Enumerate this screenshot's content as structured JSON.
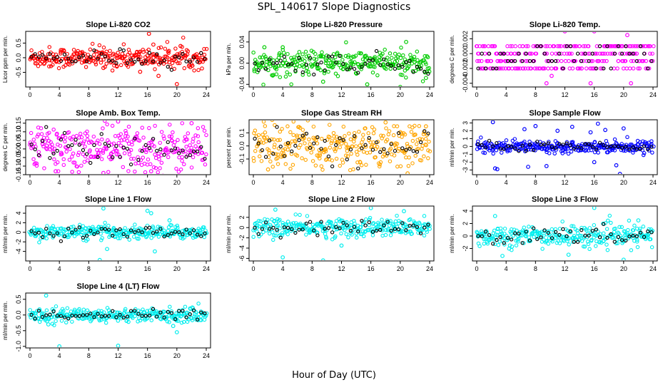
{
  "figure": {
    "title": "SPL_140617  Slope Diagnostics",
    "xlabel": "Hour of Day (UTC)"
  },
  "chart_data": [
    {
      "type": "scatter",
      "title": "Slope Li-820 CO2",
      "ylabel": "Licor ppm per min.",
      "color": "#ff0000",
      "xlim": [
        0,
        24
      ],
      "ylim": [
        -1.0,
        0.9
      ],
      "xticks": [
        0,
        4,
        8,
        12,
        16,
        20,
        24
      ],
      "yticks": [
        -0.5,
        0.0,
        0.5
      ],
      "ytick_labels": [
        "-0.5",
        "0.0",
        "0.5"
      ],
      "spread": 0.18,
      "outliers": [
        [
          16.2,
          0.82
        ],
        [
          16.8,
          0.45
        ],
        [
          17.5,
          -0.62
        ],
        [
          20.0,
          -0.9
        ],
        [
          15.0,
          -0.48
        ],
        [
          20.5,
          0.4
        ],
        [
          10.0,
          -0.35
        ]
      ]
    },
    {
      "type": "scatter",
      "title": "Slope Li-820 Pressure",
      "ylabel": "kPa per min.",
      "color": "#00cc00",
      "xlim": [
        0,
        24
      ],
      "ylim": [
        -0.045,
        0.06
      ],
      "xticks": [
        0,
        4,
        8,
        12,
        16,
        20,
        24
      ],
      "yticks": [
        -0.04,
        0.0,
        0.04
      ],
      "ytick_labels": [
        "-0.04",
        "0.00",
        "0.04"
      ],
      "spread": 0.012,
      "outliers": [
        [
          1.5,
          0.03
        ],
        [
          20.0,
          -0.045
        ],
        [
          23.5,
          -0.028
        ],
        [
          15.5,
          -0.04
        ],
        [
          20.8,
          0.04
        ],
        [
          9.5,
          -0.035
        ],
        [
          4.0,
          0.03
        ]
      ]
    },
    {
      "type": "scatter",
      "title": "Slope Li-820 Temp.",
      "ylabel": "degrees C per min.",
      "color": "#ff00ff",
      "xlim": [
        0,
        24
      ],
      "ylim": [
        -0.0045,
        0.003
      ],
      "xticks": [
        0,
        4,
        8,
        12,
        16,
        20,
        24
      ],
      "yticks": [
        -0.004,
        -0.002,
        0.0,
        0.002
      ],
      "ytick_labels": [
        "-0.004",
        "-0.002",
        "0.000",
        "0.002"
      ],
      "quantized": [
        -0.002,
        -0.001,
        0.0,
        0.001
      ],
      "spread": 0.001,
      "outliers": [
        [
          9.5,
          -0.004
        ],
        [
          15.5,
          -0.004
        ],
        [
          21.0,
          -0.004
        ],
        [
          12.0,
          0.003
        ],
        [
          16.0,
          0.003
        ],
        [
          20.5,
          0.0025
        ],
        [
          10.2,
          -0.003
        ]
      ]
    },
    {
      "type": "scatter",
      "title": "Slope Amb. Box Temp.",
      "ylabel": "degrees C per min.",
      "color": "#ff00ff",
      "xlim": [
        0,
        24
      ],
      "ylim": [
        -0.15,
        0.17
      ],
      "xticks": [
        0,
        4,
        8,
        12,
        16,
        20,
        24
      ],
      "yticks": [
        -0.15,
        -0.1,
        -0.05,
        0.0,
        0.05,
        0.1,
        0.15
      ],
      "ytick_labels": [
        "-0.15",
        "-0.10",
        "-0.05",
        "0.00",
        "0.05",
        "0.10",
        "0.15"
      ],
      "spread": 0.07,
      "outliers": [
        [
          12.0,
          0.16
        ],
        [
          10.0,
          -0.14
        ],
        [
          3.5,
          -0.13
        ],
        [
          16.5,
          -0.13
        ],
        [
          22.0,
          0.15
        ]
      ]
    },
    {
      "type": "scatter",
      "title": "Slope Gas Stream RH",
      "ylabel": "percent per min.",
      "color": "#ffa500",
      "xlim": [
        0,
        24
      ],
      "ylim": [
        -0.22,
        0.2
      ],
      "xticks": [
        0,
        4,
        8,
        12,
        16,
        20,
        24
      ],
      "yticks": [
        -0.1,
        0.0,
        0.1
      ],
      "ytick_labels": [
        "-0.1",
        "0.0",
        "0.1"
      ],
      "spread": 0.09,
      "outliers": [
        [
          21.0,
          -0.21
        ],
        [
          23.5,
          0.15
        ],
        [
          2.0,
          -0.18
        ],
        [
          18.0,
          0.18
        ]
      ]
    },
    {
      "type": "scatter",
      "title": "Slope Sample Flow",
      "ylabel": "ml/min per min.",
      "color": "#0000ff",
      "xlim": [
        0,
        24
      ],
      "ylim": [
        -3.6,
        3.4
      ],
      "xticks": [
        0,
        4,
        8,
        12,
        16,
        20,
        24
      ],
      "yticks": [
        -3,
        -2,
        -1,
        0,
        1,
        2,
        3
      ],
      "ytick_labels": [
        "-3",
        "-2",
        "-1",
        "0",
        "1",
        "2",
        "3"
      ],
      "spread": 0.35,
      "outliers": [
        [
          2.2,
          3.1
        ],
        [
          2.5,
          -2.8
        ],
        [
          2.8,
          -2.9
        ],
        [
          6.5,
          2.2
        ],
        [
          8.0,
          2.6
        ],
        [
          9.5,
          -2.5
        ],
        [
          11.0,
          2.0
        ],
        [
          13.0,
          2.5
        ],
        [
          15.5,
          1.8
        ],
        [
          16.5,
          2.9
        ],
        [
          17.5,
          2.1
        ],
        [
          19.0,
          -2.4
        ],
        [
          19.5,
          -3.5
        ],
        [
          20.0,
          2.3
        ],
        [
          16.0,
          -2.0
        ],
        [
          7.0,
          -2.6
        ]
      ]
    },
    {
      "type": "scatter",
      "title": "Slope Line 1 Flow",
      "ylabel": "ml/min per min.",
      "color": "#00eeee",
      "xlim": [
        0,
        24
      ],
      "ylim": [
        -6.0,
        5.5
      ],
      "xticks": [
        0,
        4,
        8,
        12,
        16,
        20,
        24
      ],
      "yticks": [
        -4,
        -2,
        0,
        2,
        4
      ],
      "ytick_labels": [
        "-4",
        "-2",
        "0",
        "2",
        "4"
      ],
      "spread": 0.7,
      "outliers": [
        [
          10.0,
          5.0
        ],
        [
          9.5,
          -5.8
        ],
        [
          16.0,
          4.5
        ],
        [
          17.0,
          -4.0
        ],
        [
          10.5,
          -3.5
        ],
        [
          16.5,
          4.0
        ],
        [
          19.0,
          2.5
        ]
      ]
    },
    {
      "type": "scatter",
      "title": "Slope Line 2 Flow",
      "ylabel": "ml/min per min.",
      "color": "#00eeee",
      "xlim": [
        0,
        24
      ],
      "ylim": [
        -6.5,
        4.2
      ],
      "xticks": [
        0,
        4,
        8,
        12,
        16,
        20,
        24
      ],
      "yticks": [
        -6,
        -4,
        -2,
        0,
        2
      ],
      "ytick_labels": [
        "-6",
        "-4",
        "-2",
        "0",
        "2"
      ],
      "spread": 0.9,
      "outliers": [
        [
          3.0,
          3.5
        ],
        [
          4.0,
          -5.8
        ],
        [
          9.5,
          -6.4
        ],
        [
          16.0,
          3.8
        ],
        [
          20.5,
          3.2
        ],
        [
          12.0,
          -3.5
        ]
      ]
    },
    {
      "type": "scatter",
      "title": "Slope Line 3 Flow",
      "ylabel": "ml/min per min.",
      "color": "#00eeee",
      "xlim": [
        0,
        24
      ],
      "ylim": [
        -4.0,
        4.8
      ],
      "xticks": [
        0,
        4,
        8,
        12,
        16,
        20,
        24
      ],
      "yticks": [
        -2,
        0,
        2,
        4
      ],
      "ytick_labels": [
        "-2",
        "0",
        "2",
        "4"
      ],
      "spread": 0.85,
      "outliers": [
        [
          2.5,
          3.2
        ],
        [
          3.5,
          -3.2
        ],
        [
          16.0,
          4.5
        ],
        [
          20.0,
          -3.8
        ],
        [
          12.5,
          -3.0
        ],
        [
          22.0,
          2.5
        ]
      ]
    },
    {
      "type": "scatter",
      "title": "Slope Line 4 (LT) Flow",
      "ylabel": "ml/min per min.",
      "color": "#00eeee",
      "xlim": [
        0,
        24
      ],
      "ylim": [
        -1.05,
        0.7
      ],
      "xticks": [
        0,
        4,
        8,
        12,
        16,
        20,
        24
      ],
      "yticks": [
        -1.0,
        -0.5,
        0.0,
        0.5
      ],
      "ytick_labels": [
        "-1.0",
        "-0.5",
        "0.0",
        "0.5"
      ],
      "spread": 0.11,
      "outliers": [
        [
          2.2,
          0.62
        ],
        [
          4.0,
          -1.0
        ],
        [
          12.0,
          -0.98
        ],
        [
          2.5,
          -0.3
        ],
        [
          19.5,
          -0.35
        ],
        [
          20.0,
          -0.55
        ]
      ]
    }
  ]
}
